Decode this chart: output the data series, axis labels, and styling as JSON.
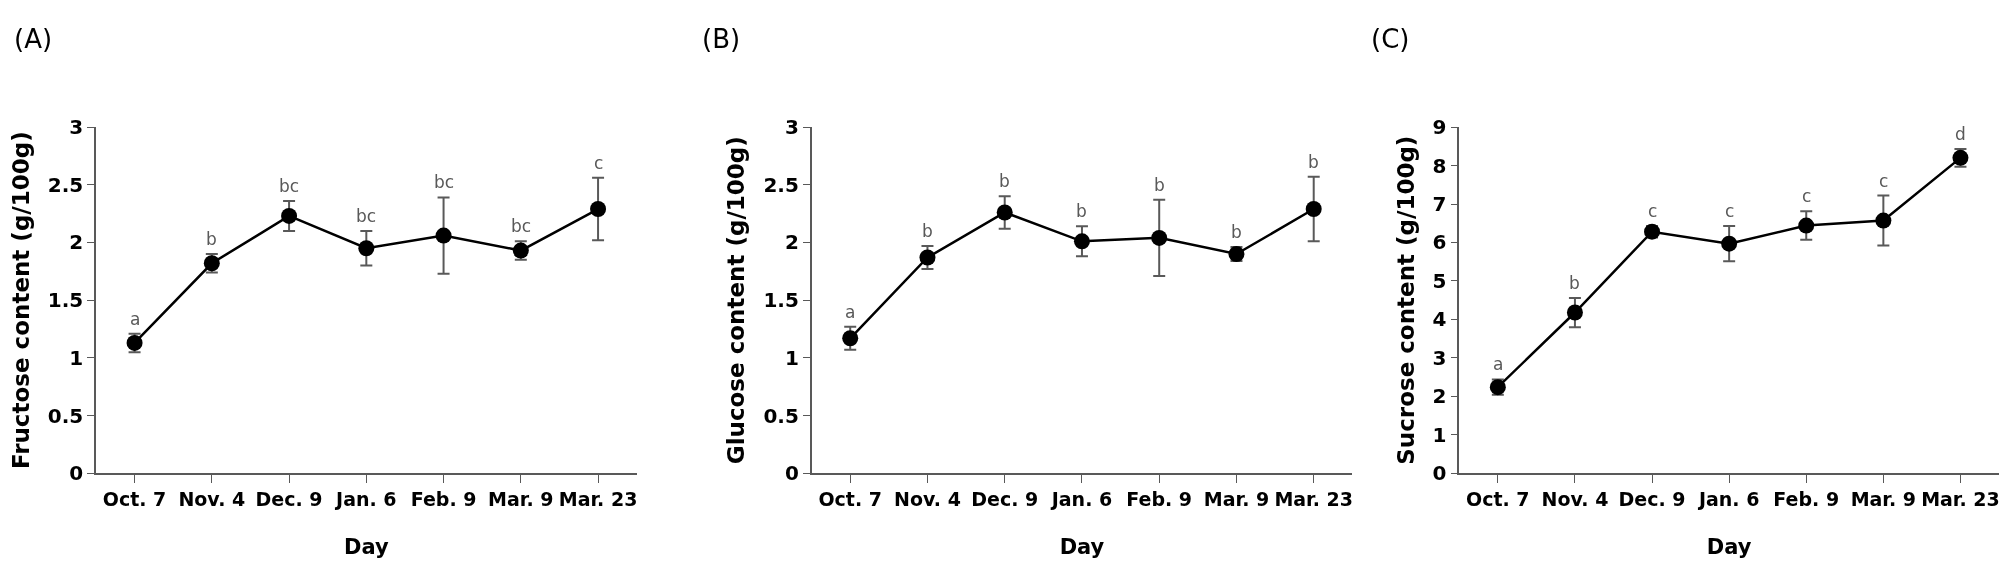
{
  "chart_data": [
    {
      "type": "line",
      "title": "(A)",
      "xlabel": "Day",
      "ylabel": "Fructose content (g/100g)",
      "categories": [
        "Oct. 7",
        "Nov. 4",
        "Dec. 9",
        "Jan. 6",
        "Feb. 9",
        "Mar. 9",
        "Mar. 23"
      ],
      "ylim": [
        0,
        3
      ],
      "yticks": [
        0,
        0.5,
        1,
        1.5,
        2,
        2.5,
        3
      ],
      "marker": "circle",
      "line_style": "solid",
      "series": [
        {
          "color": "#000000",
          "values": [
            1.13,
            1.82,
            2.23,
            1.95,
            2.06,
            1.93,
            2.29
          ],
          "errors": [
            0.08,
            0.08,
            0.13,
            0.15,
            0.33,
            0.08,
            0.27
          ]
        }
      ],
      "annotations": [
        {
          "text": "a",
          "x": "Oct. 7",
          "y": 1.21
        },
        {
          "text": "b",
          "x": "Nov. 4",
          "y": 1.9
        },
        {
          "text": "bc",
          "x": "Dec. 9",
          "y": 2.36
        },
        {
          "text": "bc",
          "x": "Jan. 6",
          "y": 2.1
        },
        {
          "text": "bc",
          "x": "Feb. 9",
          "y": 2.39
        },
        {
          "text": "bc",
          "x": "Mar. 9",
          "y": 2.01
        },
        {
          "text": "c",
          "x": "Mar. 23",
          "y": 2.56
        }
      ]
    },
    {
      "type": "line",
      "title": "(B)",
      "xlabel": "Day",
      "ylabel": "Glucose content (g/100g)",
      "categories": [
        "Oct. 7",
        "Nov. 4",
        "Dec. 9",
        "Jan. 6",
        "Feb. 9",
        "Mar. 9",
        "Mar. 23"
      ],
      "ylim": [
        0,
        3
      ],
      "yticks": [
        0,
        0.5,
        1,
        1.5,
        2,
        2.5,
        3
      ],
      "marker": "circle",
      "line_style": "solid",
      "series": [
        {
          "color": "#000000",
          "values": [
            1.17,
            1.87,
            2.26,
            2.01,
            2.04,
            1.9,
            2.29
          ],
          "errors": [
            0.1,
            0.1,
            0.14,
            0.13,
            0.33,
            0.06,
            0.28
          ]
        }
      ],
      "annotations": [
        {
          "text": "a",
          "x": "Oct. 7",
          "y": 1.27
        },
        {
          "text": "b",
          "x": "Nov. 4",
          "y": 1.97
        },
        {
          "text": "b",
          "x": "Dec. 9",
          "y": 2.4
        },
        {
          "text": "b",
          "x": "Jan. 6",
          "y": 2.14
        },
        {
          "text": "b",
          "x": "Feb. 9",
          "y": 2.37
        },
        {
          "text": "b",
          "x": "Mar. 9",
          "y": 1.96
        },
        {
          "text": "b",
          "x": "Mar. 23",
          "y": 2.57
        }
      ]
    },
    {
      "type": "line",
      "title": "(C)",
      "xlabel": "Day",
      "ylabel": "Sucrose content (g/100g)",
      "categories": [
        "Oct. 7",
        "Nov. 4",
        "Dec. 9",
        "Jan. 6",
        "Feb. 9",
        "Mar. 9",
        "Mar. 23"
      ],
      "ylim": [
        0,
        9
      ],
      "yticks": [
        0,
        1,
        2,
        3,
        4,
        5,
        6,
        7,
        8,
        9
      ],
      "marker": "circle",
      "line_style": "solid",
      "series": [
        {
          "color": "#000000",
          "values": [
            2.24,
            4.18,
            6.28,
            5.97,
            6.44,
            6.57,
            8.2
          ],
          "errors": [
            0.2,
            0.38,
            0.15,
            0.46,
            0.37,
            0.65,
            0.23
          ]
        }
      ],
      "annotations": [
        {
          "text": "a",
          "x": "Oct. 7",
          "y": 2.44
        },
        {
          "text": "b",
          "x": "Nov. 4",
          "y": 4.56
        },
        {
          "text": "c",
          "x": "Dec. 9",
          "y": 6.43
        },
        {
          "text": "c",
          "x": "Jan. 6",
          "y": 6.43
        },
        {
          "text": "c",
          "x": "Feb. 9",
          "y": 6.81
        },
        {
          "text": "c",
          "x": "Mar. 9",
          "y": 7.22
        },
        {
          "text": "d",
          "x": "Mar. 23",
          "y": 8.43
        }
      ]
    }
  ]
}
